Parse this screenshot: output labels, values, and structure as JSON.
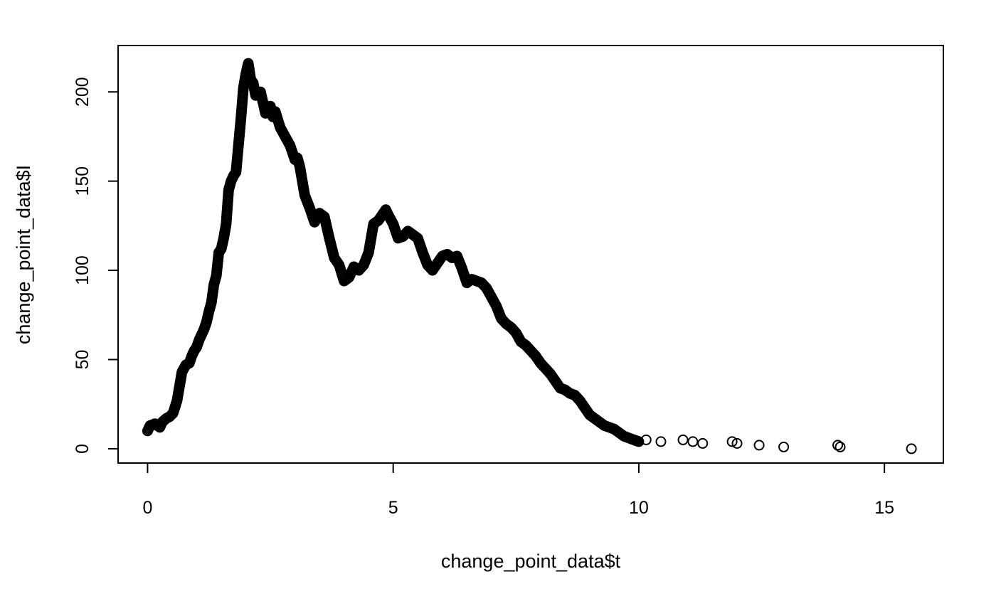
{
  "chart_data": {
    "type": "scatter",
    "xlabel": "change_point_data$t",
    "ylabel": "change_point_data$I",
    "xlim": [
      -0.6,
      16.2
    ],
    "ylim": [
      -8,
      226
    ],
    "x_ticks": [
      0,
      5,
      10,
      15
    ],
    "y_ticks": [
      0,
      50,
      100,
      150,
      200
    ],
    "grid": false,
    "legend": "none",
    "point_style": "open-circle",
    "point_color": "#000000",
    "dense_curve": [
      [
        0.0,
        10
      ],
      [
        0.05,
        13
      ],
      [
        0.15,
        14
      ],
      [
        0.25,
        12
      ],
      [
        0.3,
        15
      ],
      [
        0.38,
        17
      ],
      [
        0.45,
        18
      ],
      [
        0.52,
        20
      ],
      [
        0.6,
        27
      ],
      [
        0.65,
        35
      ],
      [
        0.7,
        43
      ],
      [
        0.78,
        47
      ],
      [
        0.85,
        48
      ],
      [
        0.9,
        52
      ],
      [
        0.95,
        55
      ],
      [
        1.0,
        57
      ],
      [
        1.05,
        61
      ],
      [
        1.1,
        64
      ],
      [
        1.15,
        67
      ],
      [
        1.2,
        71
      ],
      [
        1.25,
        77
      ],
      [
        1.3,
        82
      ],
      [
        1.35,
        92
      ],
      [
        1.4,
        97
      ],
      [
        1.45,
        110
      ],
      [
        1.5,
        112
      ],
      [
        1.55,
        118
      ],
      [
        1.6,
        126
      ],
      [
        1.65,
        145
      ],
      [
        1.7,
        150
      ],
      [
        1.75,
        153
      ],
      [
        1.8,
        155
      ],
      [
        1.85,
        170
      ],
      [
        1.9,
        185
      ],
      [
        1.95,
        202
      ],
      [
        2.0,
        210
      ],
      [
        2.05,
        216
      ],
      [
        2.1,
        207
      ],
      [
        2.15,
        205
      ],
      [
        2.2,
        198
      ],
      [
        2.3,
        200
      ],
      [
        2.35,
        194
      ],
      [
        2.4,
        188
      ],
      [
        2.5,
        192
      ],
      [
        2.55,
        186
      ],
      [
        2.6,
        189
      ],
      [
        2.7,
        180
      ],
      [
        2.8,
        175
      ],
      [
        2.9,
        170
      ],
      [
        3.0,
        162
      ],
      [
        3.05,
        163
      ],
      [
        3.1,
        158
      ],
      [
        3.15,
        150
      ],
      [
        3.2,
        142
      ],
      [
        3.3,
        135
      ],
      [
        3.4,
        127
      ],
      [
        3.5,
        132
      ],
      [
        3.6,
        130
      ],
      [
        3.7,
        118
      ],
      [
        3.8,
        107
      ],
      [
        3.9,
        103
      ],
      [
        4.0,
        94
      ],
      [
        4.1,
        96
      ],
      [
        4.2,
        102
      ],
      [
        4.3,
        100
      ],
      [
        4.4,
        103
      ],
      [
        4.5,
        110
      ],
      [
        4.6,
        126
      ],
      [
        4.7,
        128
      ],
      [
        4.8,
        132
      ],
      [
        4.85,
        134
      ],
      [
        4.9,
        131
      ],
      [
        5.0,
        126
      ],
      [
        5.1,
        118
      ],
      [
        5.2,
        119
      ],
      [
        5.3,
        122
      ],
      [
        5.4,
        120
      ],
      [
        5.5,
        118
      ],
      [
        5.6,
        110
      ],
      [
        5.7,
        103
      ],
      [
        5.8,
        100
      ],
      [
        5.9,
        104
      ],
      [
        6.0,
        108
      ],
      [
        6.1,
        109
      ],
      [
        6.2,
        107
      ],
      [
        6.3,
        108
      ],
      [
        6.4,
        101
      ],
      [
        6.5,
        93
      ],
      [
        6.6,
        95
      ],
      [
        6.7,
        94
      ],
      [
        6.8,
        93
      ],
      [
        6.9,
        90
      ],
      [
        7.0,
        85
      ],
      [
        7.1,
        80
      ],
      [
        7.2,
        73
      ],
      [
        7.3,
        70
      ],
      [
        7.4,
        68
      ],
      [
        7.5,
        65
      ],
      [
        7.6,
        60
      ],
      [
        7.7,
        58
      ],
      [
        7.8,
        55
      ],
      [
        7.9,
        52
      ],
      [
        8.0,
        48
      ],
      [
        8.1,
        45
      ],
      [
        8.2,
        42
      ],
      [
        8.3,
        38
      ],
      [
        8.4,
        34
      ],
      [
        8.5,
        33
      ],
      [
        8.6,
        31
      ],
      [
        8.7,
        30
      ],
      [
        8.8,
        27
      ],
      [
        8.9,
        23
      ],
      [
        9.0,
        19
      ],
      [
        9.1,
        17
      ],
      [
        9.2,
        15
      ],
      [
        9.3,
        13
      ],
      [
        9.4,
        12
      ],
      [
        9.5,
        11
      ],
      [
        9.6,
        9
      ],
      [
        9.7,
        7
      ],
      [
        9.8,
        6
      ],
      [
        9.9,
        5
      ],
      [
        10.0,
        4
      ]
    ],
    "sparse_points": [
      [
        10.15,
        5
      ],
      [
        10.45,
        4
      ],
      [
        10.9,
        5
      ],
      [
        11.1,
        4
      ],
      [
        11.3,
        3
      ],
      [
        11.9,
        4
      ],
      [
        12.0,
        3
      ],
      [
        12.45,
        2
      ],
      [
        12.95,
        1
      ],
      [
        14.05,
        2
      ],
      [
        14.1,
        1
      ],
      [
        15.55,
        0
      ]
    ]
  }
}
